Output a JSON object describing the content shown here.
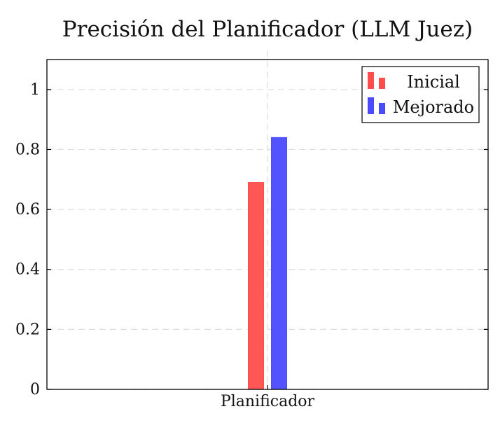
{
  "chart_data": {
    "type": "bar",
    "title": "Precisión del Planificador (LLM Juez)",
    "categories": [
      "Planificador"
    ],
    "series": [
      {
        "name": "Inicial",
        "values": [
          0.69
        ],
        "color": "#ff4d4d"
      },
      {
        "name": "Mejorado",
        "values": [
          0.84
        ],
        "color": "#4a4aff"
      }
    ],
    "xlabel": "",
    "ylabel": "",
    "ylim": [
      0,
      1.1
    ],
    "yticks": [
      0,
      0.2,
      0.4,
      0.6,
      0.8,
      1
    ],
    "ytick_labels": [
      "0",
      "0.2",
      "0.4",
      "0.6",
      "0.8",
      "1"
    ],
    "grid": true,
    "legend_position": "top-right"
  }
}
